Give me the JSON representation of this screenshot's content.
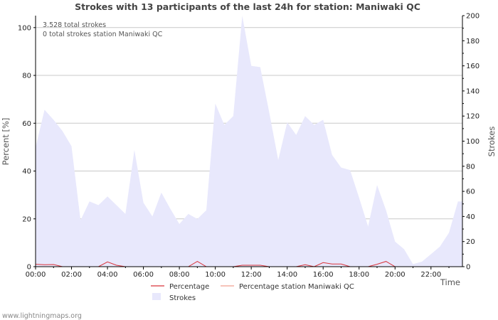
{
  "chart_data": {
    "type": "area",
    "title": "Strokes with 13 participants of the last 24h for station: Maniwaki QC",
    "xlabel": "Time",
    "ylabel_left": "Percent   [%]",
    "ylabel_right": "Strokes",
    "ylim_left": [
      0,
      105
    ],
    "ylim_right": [
      0,
      200
    ],
    "left_ticks": [
      0,
      20,
      40,
      60,
      80,
      100
    ],
    "right_ticks": [
      0,
      20,
      40,
      60,
      80,
      100,
      120,
      140,
      160,
      180,
      200
    ],
    "x_ticks": [
      "00:00",
      "02:00",
      "04:00",
      "06:00",
      "08:00",
      "10:00",
      "12:00",
      "14:00",
      "16:00",
      "18:00",
      "20:00",
      "22:00"
    ],
    "x_range_hours": [
      0,
      23.75
    ],
    "annotations": [
      "3.528 total strokes",
      "0 total strokes station Maniwaki QC"
    ],
    "legend": [
      "Percentage",
      "Percentage station Maniwaki QC",
      "Strokes"
    ],
    "series": [
      {
        "name": "Strokes",
        "axis": "right",
        "color": "#e8e8fc",
        "x": [
          0,
          0.5,
          1.0,
          1.5,
          2.0,
          2.5,
          3.0,
          3.5,
          4.0,
          4.5,
          5.0,
          5.5,
          6.0,
          6.5,
          7.0,
          7.5,
          8.0,
          8.5,
          9.0,
          9.5,
          10.0,
          10.5,
          11.0,
          11.5,
          12.0,
          12.5,
          13.0,
          13.5,
          14.0,
          14.5,
          15.0,
          15.5,
          16.0,
          16.5,
          17.0,
          17.5,
          18.0,
          18.5,
          19.0,
          19.5,
          20.0,
          20.5,
          21.0,
          21.5,
          22.0,
          22.5,
          23.0,
          23.5,
          23.75
        ],
        "values": [
          95,
          125,
          117,
          108,
          96,
          37,
          52,
          49,
          56,
          49,
          42,
          93,
          51,
          40,
          59,
          46,
          34,
          42,
          38,
          45,
          130,
          113,
          120,
          200,
          160,
          159,
          123,
          85,
          115,
          105,
          120,
          113,
          117,
          89,
          79,
          77,
          55,
          32,
          65,
          45,
          20,
          14,
          2,
          4,
          10,
          16,
          27,
          52,
          52
        ]
      },
      {
        "name": "Percentage",
        "axis": "left",
        "color": "#d9343a",
        "x": [
          0,
          0.5,
          1.0,
          1.5,
          2.0,
          2.5,
          3.0,
          3.5,
          4.0,
          4.5,
          5.0,
          5.5,
          6.0,
          6.5,
          7.0,
          7.5,
          8.0,
          8.5,
          9.0,
          9.5,
          10.0,
          10.5,
          11.0,
          11.5,
          12.0,
          12.5,
          13.0,
          13.5,
          14.0,
          14.5,
          15.0,
          15.5,
          16.0,
          16.5,
          17.0,
          17.5,
          18.0,
          18.5,
          19.0,
          19.5,
          20.0,
          20.5,
          21.0,
          21.5,
          22.0,
          22.5,
          23.0,
          23.5,
          23.75
        ],
        "values": [
          1.0,
          0.8,
          0.9,
          0,
          0,
          0,
          0,
          0,
          2.0,
          0.6,
          0,
          0,
          0,
          0,
          0,
          0,
          0,
          0,
          2.2,
          0,
          0,
          0,
          0,
          0.6,
          0.6,
          0.6,
          0,
          0,
          0,
          0,
          0.8,
          0,
          1.7,
          1.1,
          1.1,
          0,
          0,
          0,
          1.0,
          2.2,
          0,
          0,
          0,
          0,
          0,
          0,
          0,
          0,
          0
        ]
      },
      {
        "name": "Percentage station Maniwaki QC",
        "axis": "left",
        "color": "#f0a090",
        "x": [
          0,
          23.75
        ],
        "values": [
          0,
          0
        ]
      }
    ]
  },
  "footer": "www.lightningmaps.org"
}
